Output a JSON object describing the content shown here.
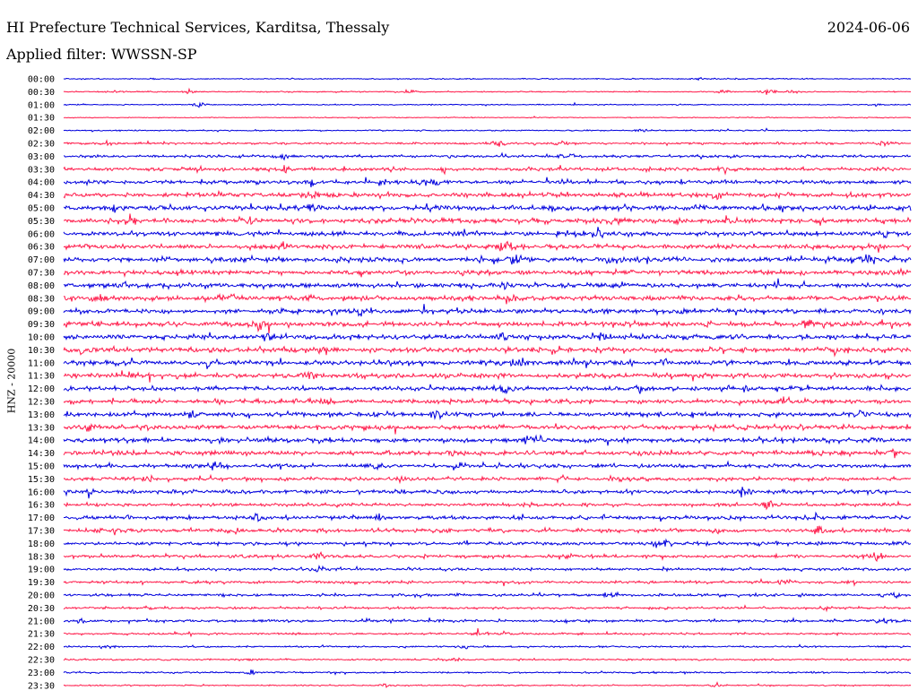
{
  "header": {
    "title": "HI Prefecture Technical Services, Karditsa, Thessaly",
    "date": "2024-06-06",
    "filter": "Applied filter: WWSSN-SP"
  },
  "axis": {
    "channel_label": "HNZ - 20000"
  },
  "colors": {
    "trace_even": "#0000dd",
    "trace_odd": "#ff1a4a",
    "text": "#000000",
    "background": "#ffffff"
  },
  "chart_data": {
    "type": "line",
    "title": "HI Prefecture Technical Services, Karditsa, Thessaly",
    "ylabel": "HNZ - 20000",
    "legend": "none",
    "grid": false,
    "row_interval_minutes": 30,
    "row_labels": [
      "00:00",
      "00:30",
      "01:00",
      "01:30",
      "02:00",
      "02:30",
      "03:00",
      "03:30",
      "04:00",
      "04:30",
      "05:00",
      "05:30",
      "06:00",
      "06:30",
      "07:00",
      "07:30",
      "08:00",
      "08:30",
      "09:00",
      "09:30",
      "10:00",
      "10:30",
      "11:00",
      "11:30",
      "12:00",
      "12:30",
      "13:00",
      "13:30",
      "14:00",
      "14:30",
      "15:00",
      "15:30",
      "16:00",
      "16:30",
      "17:00",
      "17:30",
      "18:00",
      "18:30",
      "19:00",
      "19:30",
      "20:00",
      "20:30",
      "21:00",
      "21:30",
      "22:00",
      "22:30",
      "23:00",
      "23:30"
    ],
    "series": [
      {
        "noise": 1.0,
        "events": [
          {
            "x": 0.75,
            "amp": 3
          }
        ]
      },
      {
        "noise": 1.0,
        "events": [
          {
            "x": 0.15,
            "amp": 5
          },
          {
            "x": 0.41,
            "amp": 5
          },
          {
            "x": 0.78,
            "amp": 5
          },
          {
            "x": 0.83,
            "amp": 9
          },
          {
            "x": 0.86,
            "amp": 4
          }
        ]
      },
      {
        "noise": 1.0,
        "events": [
          {
            "x": 0.16,
            "amp": 6
          },
          {
            "x": 0.96,
            "amp": 3
          }
        ]
      },
      {
        "noise": 0.8,
        "events": []
      },
      {
        "noise": 1.2,
        "events": [
          {
            "x": 0.68,
            "amp": 3
          },
          {
            "x": 0.83,
            "amp": 3
          }
        ]
      },
      {
        "noise": 2.0,
        "events": [
          {
            "x": 0.05,
            "amp": 4
          },
          {
            "x": 0.51,
            "amp": 7
          },
          {
            "x": 0.59,
            "amp": 3
          },
          {
            "x": 0.97,
            "amp": 6
          }
        ]
      },
      {
        "noise": 2.5,
        "events": [
          {
            "x": 0.26,
            "amp": 5
          },
          {
            "x": 0.52,
            "amp": 4
          },
          {
            "x": 0.6,
            "amp": 6
          }
        ]
      },
      {
        "noise": 3.0,
        "events": [
          {
            "x": 0.26,
            "amp": 6
          },
          {
            "x": 0.45,
            "amp": 5
          },
          {
            "x": 0.78,
            "amp": 6
          }
        ]
      },
      {
        "noise": 3.5,
        "events": [
          {
            "x": 0.29,
            "amp": 8
          },
          {
            "x": 0.38,
            "amp": 6
          },
          {
            "x": 0.43,
            "amp": 14
          },
          {
            "x": 0.59,
            "amp": 5
          }
        ]
      },
      {
        "noise": 4.0,
        "events": [
          {
            "x": 0.29,
            "amp": 14
          },
          {
            "x": 0.32,
            "amp": 6
          },
          {
            "x": 0.58,
            "amp": 5
          },
          {
            "x": 0.77,
            "amp": 6
          }
        ]
      },
      {
        "noise": 4.5,
        "events": [
          {
            "x": 0.06,
            "amp": 6
          },
          {
            "x": 0.29,
            "amp": 6
          },
          {
            "x": 0.44,
            "amp": 5
          },
          {
            "x": 0.85,
            "amp": 5
          }
        ]
      },
      {
        "noise": 4.5,
        "events": [
          {
            "x": 0.08,
            "amp": 6
          },
          {
            "x": 0.22,
            "amp": 11
          },
          {
            "x": 0.65,
            "amp": 5
          }
        ]
      },
      {
        "noise": 4.0,
        "events": [
          {
            "x": 0.47,
            "amp": 9
          },
          {
            "x": 0.63,
            "amp": 8
          },
          {
            "x": 0.97,
            "amp": 5
          }
        ]
      },
      {
        "noise": 4.0,
        "events": [
          {
            "x": 0.26,
            "amp": 6
          },
          {
            "x": 0.52,
            "amp": 9
          },
          {
            "x": 0.96,
            "amp": 7
          }
        ]
      },
      {
        "noise": 4.5,
        "events": [
          {
            "x": 0.53,
            "amp": 9
          },
          {
            "x": 0.65,
            "amp": 7
          },
          {
            "x": 0.95,
            "amp": 9
          }
        ]
      },
      {
        "noise": 4.0,
        "events": [
          {
            "x": 0.35,
            "amp": 5
          },
          {
            "x": 0.47,
            "amp": 6
          }
        ]
      },
      {
        "noise": 4.0,
        "events": [
          {
            "x": 0.07,
            "amp": 6
          },
          {
            "x": 0.52,
            "amp": 6
          }
        ]
      },
      {
        "noise": 4.5,
        "events": [
          {
            "x": 0.04,
            "amp": 8
          },
          {
            "x": 0.2,
            "amp": 6
          },
          {
            "x": 0.52,
            "amp": 7
          }
        ]
      },
      {
        "noise": 4.0,
        "events": [
          {
            "x": 0.35,
            "amp": 7
          },
          {
            "x": 0.73,
            "amp": 5
          }
        ]
      },
      {
        "noise": 4.5,
        "events": [
          {
            "x": 0.23,
            "amp": 9
          },
          {
            "x": 0.88,
            "amp": 6
          },
          {
            "x": 0.93,
            "amp": 5
          }
        ]
      },
      {
        "noise": 4.5,
        "events": [
          {
            "x": 0.24,
            "amp": 7
          },
          {
            "x": 0.52,
            "amp": 7
          },
          {
            "x": 0.64,
            "amp": 5
          }
        ]
      },
      {
        "noise": 4.5,
        "events": [
          {
            "x": 0.02,
            "amp": 7
          },
          {
            "x": 0.31,
            "amp": 7
          },
          {
            "x": 0.91,
            "amp": 6
          }
        ]
      },
      {
        "noise": 4.5,
        "events": [
          {
            "x": 0.17,
            "amp": 6
          },
          {
            "x": 0.54,
            "amp": 8
          },
          {
            "x": 0.71,
            "amp": 6
          }
        ]
      },
      {
        "noise": 4.5,
        "events": [
          {
            "x": 0.08,
            "amp": 6
          },
          {
            "x": 0.29,
            "amp": 6
          },
          {
            "x": 0.76,
            "amp": 5
          }
        ]
      },
      {
        "noise": 4.0,
        "events": [
          {
            "x": 0.52,
            "amp": 7
          },
          {
            "x": 0.68,
            "amp": 6
          }
        ]
      },
      {
        "noise": 4.0,
        "events": [
          {
            "x": 0.31,
            "amp": 5
          },
          {
            "x": 0.85,
            "amp": 6
          }
        ]
      },
      {
        "noise": 4.0,
        "events": [
          {
            "x": 0.15,
            "amp": 6
          },
          {
            "x": 0.44,
            "amp": 7
          },
          {
            "x": 0.94,
            "amp": 5
          }
        ]
      },
      {
        "noise": 4.0,
        "events": [
          {
            "x": 0.03,
            "amp": 6
          },
          {
            "x": 0.37,
            "amp": 6
          },
          {
            "x": 0.81,
            "amp": 5
          }
        ]
      },
      {
        "noise": 4.0,
        "events": [
          {
            "x": 0.55,
            "amp": 8
          },
          {
            "x": 0.82,
            "amp": 5
          }
        ]
      },
      {
        "noise": 4.0,
        "events": [
          {
            "x": 0.46,
            "amp": 6
          },
          {
            "x": 0.98,
            "amp": 6
          }
        ]
      },
      {
        "noise": 3.5,
        "events": [
          {
            "x": 0.18,
            "amp": 6
          },
          {
            "x": 0.37,
            "amp": 6
          },
          {
            "x": 0.47,
            "amp": 6
          }
        ]
      },
      {
        "noise": 3.5,
        "events": [
          {
            "x": 0.1,
            "amp": 5
          },
          {
            "x": 0.4,
            "amp": 5
          },
          {
            "x": 0.66,
            "amp": 6
          }
        ]
      },
      {
        "noise": 3.5,
        "events": [
          {
            "x": 0.03,
            "amp": 8
          },
          {
            "x": 0.4,
            "amp": 6
          },
          {
            "x": 0.8,
            "amp": 6
          }
        ]
      },
      {
        "noise": 3.0,
        "events": [
          {
            "x": 0.83,
            "amp": 7
          }
        ]
      },
      {
        "noise": 3.5,
        "events": [
          {
            "x": 0.23,
            "amp": 7
          },
          {
            "x": 0.37,
            "amp": 5
          },
          {
            "x": 0.89,
            "amp": 6
          }
        ]
      },
      {
        "noise": 3.5,
        "events": [
          {
            "x": 0.21,
            "amp": 7
          },
          {
            "x": 0.89,
            "amp": 9
          }
        ]
      },
      {
        "noise": 3.0,
        "events": [
          {
            "x": 0.71,
            "amp": 8
          }
        ]
      },
      {
        "noise": 3.0,
        "events": [
          {
            "x": 0.3,
            "amp": 8
          },
          {
            "x": 0.96,
            "amp": 7
          }
        ]
      },
      {
        "noise": 2.5,
        "events": [
          {
            "x": 0.3,
            "amp": 6
          }
        ]
      },
      {
        "noise": 2.5,
        "events": [
          {
            "x": 0.85,
            "amp": 5
          }
        ]
      },
      {
        "noise": 2.5,
        "events": [
          {
            "x": 0.65,
            "amp": 5
          },
          {
            "x": 0.98,
            "amp": 5
          }
        ]
      },
      {
        "noise": 2.0,
        "events": [
          {
            "x": 0.1,
            "amp": 5
          },
          {
            "x": 0.9,
            "amp": 6
          }
        ]
      },
      {
        "noise": 2.5,
        "events": [
          {
            "x": 0.02,
            "amp": 5
          },
          {
            "x": 0.97,
            "amp": 6
          }
        ]
      },
      {
        "noise": 1.8,
        "events": [
          {
            "x": 0.49,
            "amp": 8
          }
        ]
      },
      {
        "noise": 1.5,
        "events": [
          {
            "x": 0.05,
            "amp": 5
          },
          {
            "x": 0.47,
            "amp": 5
          }
        ]
      },
      {
        "noise": 1.5,
        "events": [
          {
            "x": 0.46,
            "amp": 6
          }
        ]
      },
      {
        "noise": 1.5,
        "events": [
          {
            "x": 0.22,
            "amp": 6
          },
          {
            "x": 0.89,
            "amp": 4
          }
        ]
      },
      {
        "noise": 1.2,
        "events": [
          {
            "x": 0.38,
            "amp": 4
          },
          {
            "x": 0.77,
            "amp": 5
          }
        ]
      }
    ]
  }
}
